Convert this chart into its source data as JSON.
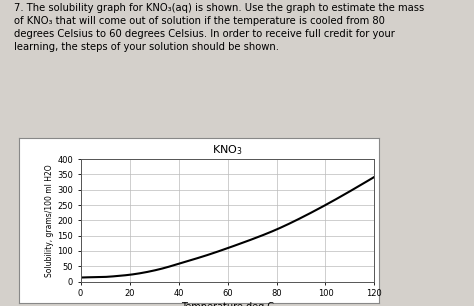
{
  "title": "KNO$_3$",
  "xlabel": "Temperature deg.C",
  "ylabel": "Solubility, grams/100 ml H2O",
  "xlim": [
    0,
    120
  ],
  "ylim": [
    0,
    400
  ],
  "xticks": [
    0,
    20,
    40,
    60,
    80,
    100,
    120
  ],
  "yticks": [
    0,
    50,
    100,
    150,
    200,
    250,
    300,
    350,
    400
  ],
  "curve_x": [
    0,
    5,
    10,
    15,
    20,
    25,
    30,
    35,
    40,
    50,
    60,
    70,
    80,
    90,
    100,
    110,
    120
  ],
  "curve_y": [
    13,
    14,
    15,
    18,
    22,
    28,
    36,
    46,
    58,
    82,
    109,
    138,
    170,
    208,
    250,
    295,
    342
  ],
  "line_color": "#000000",
  "bg_color": "#ffffff",
  "chart_border_color": "#888888",
  "grid_color": "#bbbbbb",
  "fig_bg_color": "#d4d0cb",
  "text_color": "#000000",
  "header_line1": "7. The solubility graph for KNO",
  "header_line1_sub": "3",
  "header_rest": "(aq) is shown. Use the graph to estimate the mass\nof KNO₃ that will come out of solution if the temperature is cooled from 80\ndegrees Celsius to 60 degrees Celsius. In order to receive full credit for your\nlearning, the steps of your solution should be shown.",
  "fig_width": 4.74,
  "fig_height": 3.06,
  "dpi": 100
}
